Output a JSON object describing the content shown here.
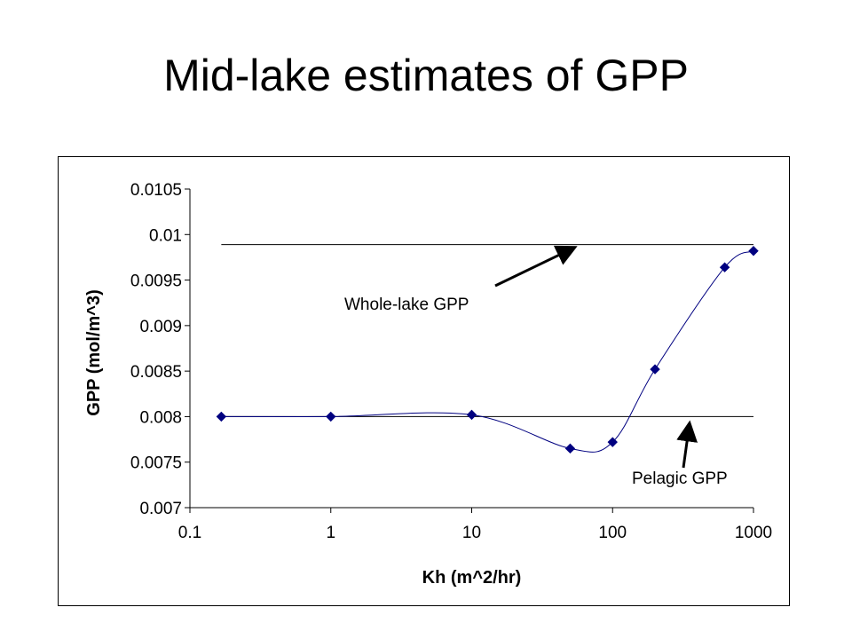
{
  "slide": {
    "title": "Mid-lake estimates of GPP"
  },
  "chart_data": {
    "type": "scatter",
    "title": "",
    "xlabel": "Kh (m^2/hr)",
    "ylabel": "GPP (mol/m^3)",
    "xscale": "log",
    "xlim": [
      0.1,
      1000
    ],
    "ylim": [
      0.007,
      0.0105
    ],
    "xticks": [
      0.1,
      1,
      10,
      100,
      1000
    ],
    "xtick_labels": [
      "0.1",
      "1",
      "10",
      "100",
      "1000"
    ],
    "yticks": [
      0.007,
      0.0075,
      0.008,
      0.0085,
      0.009,
      0.0095,
      0.01,
      0.0105
    ],
    "ytick_labels": [
      "0.007",
      "0.0075",
      "0.008",
      "0.0085",
      "0.009",
      "0.0095",
      "0.01",
      "0.0105"
    ],
    "grid": false,
    "series": [
      {
        "x": [
          0.167,
          1,
          10,
          50,
          100,
          200,
          625,
          1000
        ],
        "y": [
          0.008,
          0.008,
          0.00802,
          0.00765,
          0.00772,
          0.00852,
          0.00964,
          0.00982
        ],
        "color": "#000080",
        "marker": "diamond",
        "line": "smooth"
      }
    ],
    "reference_lines": [
      {
        "label": "Whole-lake GPP",
        "y": 0.00989,
        "x_range": [
          0.167,
          1000
        ]
      },
      {
        "label": "Pelagic GPP",
        "y": 0.008,
        "x_range": [
          0.167,
          1000
        ]
      }
    ],
    "annotations": [
      {
        "text": "Whole-lake GPP",
        "target": "Whole-lake GPP"
      },
      {
        "text": "Pelagic GPP",
        "target": "Pelagic GPP"
      }
    ]
  }
}
